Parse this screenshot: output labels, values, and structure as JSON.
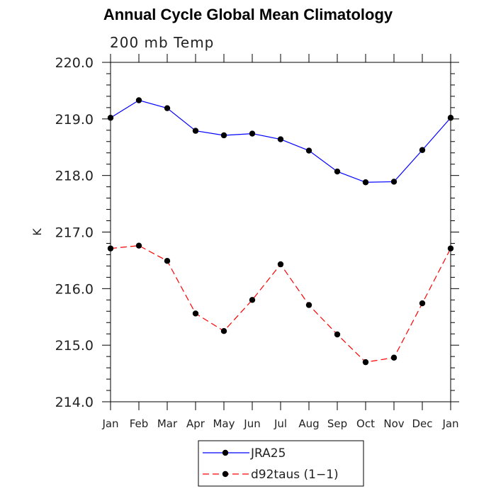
{
  "chart_data": {
    "type": "line",
    "title": "Annual Cycle Global Mean Climatology",
    "subtitle": "200 mb Temp",
    "xlabel": "",
    "ylabel": "K",
    "categories": [
      "Jan",
      "Feb",
      "Mar",
      "Apr",
      "May",
      "Jun",
      "Jul",
      "Aug",
      "Sep",
      "Oct",
      "Nov",
      "Dec",
      "Jan"
    ],
    "ylim": [
      214.0,
      220.0
    ],
    "yticks": [
      "214.0",
      "215.0",
      "216.0",
      "217.0",
      "218.0",
      "219.0",
      "220.0"
    ],
    "grid": false,
    "legend_position": "bottom",
    "series": [
      {
        "name": "JRA25",
        "color": "#0000ff",
        "line_style": "solid",
        "values": [
          219.02,
          219.33,
          219.19,
          218.79,
          218.71,
          218.74,
          218.64,
          218.44,
          218.07,
          217.88,
          217.89,
          218.45,
          219.02
        ]
      },
      {
        "name": "d92taus (1−1)",
        "color": "#ff0000",
        "line_style": "dashed",
        "values": [
          216.71,
          216.76,
          216.49,
          215.56,
          215.25,
          215.8,
          216.43,
          215.71,
          215.19,
          214.7,
          214.78,
          215.74,
          216.71
        ]
      }
    ]
  }
}
